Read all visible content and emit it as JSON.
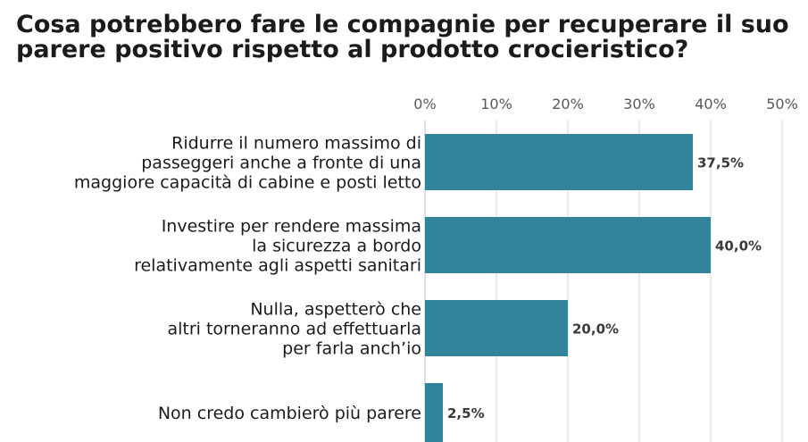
{
  "chart_data": {
    "type": "bar",
    "orientation": "horizontal",
    "title_lines": [
      "Cosa potrebbero fare le compagnie per recuperare il suo",
      "parere positivo rispetto al prodotto crocieristico?"
    ],
    "categories": [
      [
        "Ridurre il numero massimo di",
        "passeggeri anche a fronte di una",
        "maggiore capacità di cabine e posti letto"
      ],
      [
        "Investire per rendere massima",
        "la sicurezza a bordo",
        "relativamente agli aspetti sanitari"
      ],
      [
        "Nulla, aspetterò che",
        "altri torneranno ad effettuarla",
        "per farla anch’io"
      ],
      [
        "Non credo cambierò più parere"
      ]
    ],
    "values": [
      37.5,
      40.0,
      20.0,
      2.5
    ],
    "data_labels": [
      "37,5%",
      "40,0%",
      "20,0%",
      "2,5%"
    ],
    "x_ticks": [
      "0%",
      "10%",
      "20%",
      "30%",
      "40%",
      "50%"
    ],
    "x_tick_values": [
      0,
      10,
      20,
      30,
      40,
      50
    ],
    "xlim": [
      0,
      50
    ],
    "xaxis_position": "top",
    "grid": true,
    "legend": "none",
    "bar_color": "#31849b",
    "grid_color": "#d9d9d9"
  }
}
